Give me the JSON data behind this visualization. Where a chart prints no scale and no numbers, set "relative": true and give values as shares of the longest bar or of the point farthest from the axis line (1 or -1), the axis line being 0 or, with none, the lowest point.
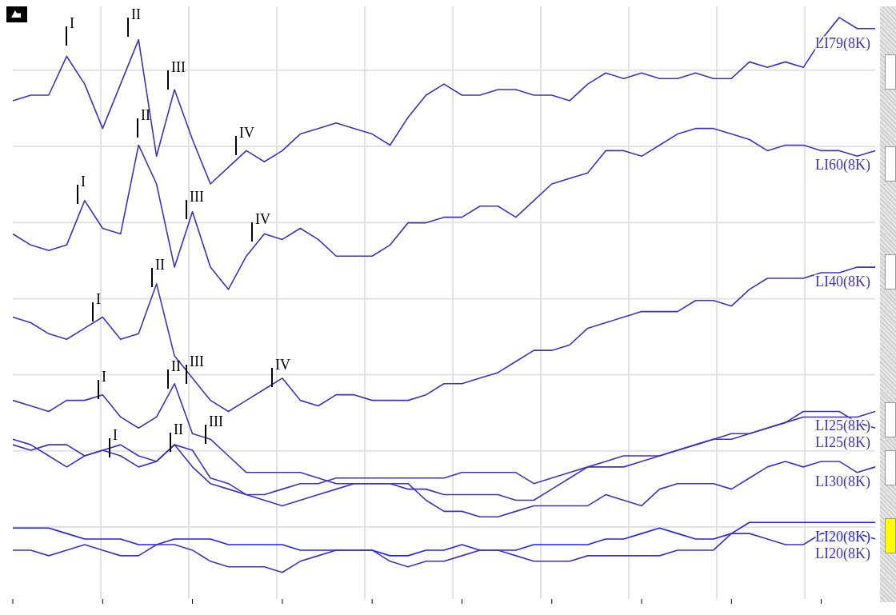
{
  "chart_data": {
    "type": "line",
    "relative": true,
    "grid": true,
    "categories": [
      null,
      null,
      null,
      null,
      null,
      null,
      null,
      null,
      null,
      null,
      null,
      null,
      null,
      null,
      null,
      null,
      null,
      null,
      null,
      null,
      null,
      null,
      null,
      null,
      null,
      null,
      null,
      null,
      null,
      null,
      null,
      null,
      null,
      null,
      null,
      null,
      null,
      null,
      null,
      null,
      null,
      null,
      null,
      null,
      null,
      null,
      null,
      null,
      null
    ],
    "series": [
      {
        "name": "LI79(8K)",
        "color": "#4030c0",
        "values": [
          0.85,
          0.86,
          0.86,
          0.93,
          0.88,
          0.8,
          0.88,
          0.96,
          0.75,
          0.87,
          0.78,
          0.7,
          0.73,
          0.76,
          0.74,
          0.76,
          0.79,
          0.8,
          0.81,
          0.8,
          0.79,
          0.77,
          0.82,
          0.86,
          0.88,
          0.86,
          0.86,
          0.87,
          0.87,
          0.86,
          0.86,
          0.85,
          0.88,
          0.9,
          0.89,
          0.9,
          0.89,
          0.89,
          0.9,
          0.89,
          0.89,
          0.92,
          0.91,
          0.92,
          0.91,
          0.96,
          1,
          0.98,
          0.98
        ]
      },
      {
        "name": "LI60(8K)",
        "color": "#4030c0",
        "values": [
          0.61,
          0.59,
          0.58,
          0.59,
          0.67,
          0.62,
          0.61,
          0.77,
          0.7,
          0.55,
          0.65,
          0.55,
          0.51,
          0.57,
          0.61,
          0.6,
          0.62,
          0.6,
          0.57,
          0.57,
          0.57,
          0.59,
          0.63,
          0.63,
          0.64,
          0.64,
          0.66,
          0.66,
          0.64,
          0.67,
          0.7,
          0.71,
          0.72,
          0.76,
          0.76,
          0.75,
          0.77,
          0.79,
          0.8,
          0.8,
          0.79,
          0.78,
          0.76,
          0.77,
          0.77,
          0.76,
          0.76,
          0.75,
          0.76
        ]
      },
      {
        "name": "LI40(8K)",
        "color": "#4030c0",
        "values": [
          0.46,
          0.45,
          0.43,
          0.42,
          0.44,
          0.46,
          0.42,
          0.43,
          0.52,
          0.39,
          0.35,
          0.31,
          0.29,
          0.31,
          0.33,
          0.35,
          0.31,
          0.3,
          0.32,
          0.32,
          0.31,
          0.31,
          0.31,
          0.32,
          0.34,
          0.34,
          0.35,
          0.36,
          0.38,
          0.4,
          0.4,
          0.41,
          0.44,
          0.45,
          0.46,
          0.47,
          0.47,
          0.47,
          0.49,
          0.49,
          0.48,
          0.51,
          0.53,
          0.53,
          0.53,
          0.54,
          0.54,
          0.55,
          0.55
        ]
      },
      {
        "name": "LI25(8K)",
        "color": "#4030c0",
        "values": [
          0.31,
          0.3,
          0.29,
          0.31,
          0.31,
          0.32,
          0.28,
          0.26,
          0.28,
          0.34,
          0.25,
          0.24,
          0.21,
          0.18,
          0.18,
          0.18,
          0.18,
          0.17,
          0.16,
          0.16,
          0.16,
          0.16,
          0.15,
          0.15,
          0.14,
          0.14,
          0.14,
          0.14,
          0.13,
          0.13,
          0.15,
          0.17,
          0.19,
          0.19,
          0.19,
          0.2,
          0.21,
          0.22,
          0.23,
          0.24,
          0.25,
          0.25,
          0.26,
          0.27,
          0.28,
          0.28,
          0.28,
          0.28,
          0.29
        ]
      },
      {
        "name": "LI25(8K)",
        "color": "#4030c0",
        "values": [
          0.24,
          0.23,
          0.21,
          0.19,
          0.21,
          0.22,
          0.23,
          0.21,
          0.2,
          0.23,
          0.22,
          0.17,
          0.16,
          0.14,
          0.14,
          0.15,
          0.16,
          0.16,
          0.17,
          0.17,
          0.17,
          0.17,
          0.17,
          0.17,
          0.17,
          0.18,
          0.18,
          0.18,
          0.18,
          0.16,
          0.17,
          0.18,
          0.19,
          0.2,
          0.21,
          0.21,
          0.21,
          0.22,
          0.23,
          0.24,
          0.24,
          0.25,
          0.26,
          0.27,
          0.29,
          0.29,
          0.29,
          0.27,
          0.26
        ]
      },
      {
        "name": "LI30(8K)",
        "color": "#4030c0",
        "values": [
          0.23,
          0.22,
          0.23,
          0.23,
          0.21,
          0.22,
          0.21,
          0.19,
          0.2,
          0.23,
          0.19,
          0.16,
          0.15,
          0.14,
          0.13,
          0.12,
          0.13,
          0.14,
          0.15,
          0.16,
          0.16,
          0.16,
          0.16,
          0.13,
          0.11,
          0.11,
          0.1,
          0.1,
          0.11,
          0.12,
          0.12,
          0.12,
          0.12,
          0.14,
          0.13,
          0.12,
          0.15,
          0.16,
          0.16,
          0.16,
          0.15,
          0.17,
          0.19,
          0.2,
          0.19,
          0.2,
          0.2,
          0.18,
          0.19
        ]
      },
      {
        "name": "LI20(8K)",
        "color": "#2020ff",
        "values": [
          0.08,
          0.08,
          0.08,
          0.07,
          0.06,
          0.06,
          0.06,
          0.05,
          0.05,
          0.06,
          0.06,
          0.06,
          0.05,
          0.05,
          0.05,
          0.05,
          0.04,
          0.04,
          0.04,
          0.04,
          0.04,
          0.03,
          0.03,
          0.04,
          0.04,
          0.05,
          0.04,
          0.04,
          0.04,
          0.05,
          0.05,
          0.05,
          0.05,
          0.06,
          0.06,
          0.07,
          0.08,
          0.07,
          0.06,
          0.06,
          0.07,
          0.09,
          0.09,
          0.09,
          0.09,
          0.09,
          0.09,
          0.09,
          0.09
        ]
      },
      {
        "name": "LI20(8K)",
        "color": "#4030c0",
        "values": [
          0.04,
          0.04,
          0.03,
          0.04,
          0.05,
          0.04,
          0.03,
          0.03,
          0.05,
          0.05,
          0.04,
          0.02,
          0.01,
          0.01,
          0.01,
          0,
          0.02,
          0.03,
          0.04,
          0.04,
          0.04,
          0.02,
          0.01,
          0.02,
          0.02,
          0.03,
          0.04,
          0.04,
          0.03,
          0.02,
          0.02,
          0.02,
          0.03,
          0.03,
          0.03,
          0.03,
          0.03,
          0.04,
          0.04,
          0.04,
          0.07,
          0.07,
          0.06,
          0.05,
          0.05,
          0.07,
          0.07,
          0.07,
          0.06
        ]
      }
    ],
    "annotations": [
      "I",
      "II",
      "III",
      "IV",
      "I",
      "II",
      "III",
      "IV",
      "I",
      "II",
      "III",
      "IV",
      "I",
      "II",
      "I",
      "II",
      "III"
    ]
  }
}
